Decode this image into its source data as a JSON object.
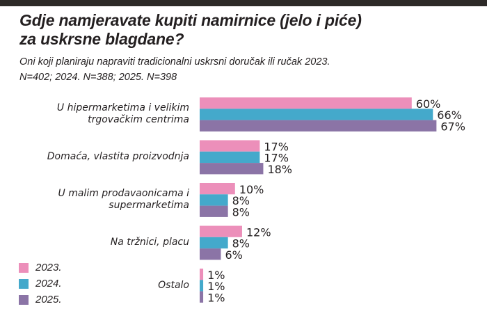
{
  "chart_data": {
    "type": "bar",
    "orientation": "horizontal",
    "title": "Gdje namjeravate kupiti namirnice (jelo i piće) za uskrsne blagdane?",
    "title_lines": [
      "Gdje namjeravate kupiti namirnice (jelo i piće)",
      "za uskrsne blagdane?"
    ],
    "subtitle_lines": [
      "Oni koji planiraju napraviti tradicionalni uskrsni doručak ili ručak 2023.",
      "N=402; 2024. N=388; 2025. N=398"
    ],
    "categories": [
      "U hipermarketima i velikim trgovačkim centrima",
      "Domaća, vlastita proizvodnja",
      "U malim prodavaonicama i supermarketima",
      "Na tržnici, placu",
      "Ostalo"
    ],
    "category_lines": [
      [
        "U hipermarketima i velikim",
        "trgovačkim centrima"
      ],
      [
        "Domaća, vlastita proizvodnja"
      ],
      [
        "U malim prodavaonicama i",
        "supermarketima"
      ],
      [
        "Na tržnici, placu"
      ],
      [
        "Ostalo"
      ]
    ],
    "series": [
      {
        "name": "2023.",
        "color": "#ec8fba",
        "values": [
          60,
          17,
          10,
          12,
          1
        ]
      },
      {
        "name": "2024.",
        "color": "#44a9cb",
        "values": [
          66,
          17,
          8,
          8,
          1
        ]
      },
      {
        "name": "2025.",
        "color": "#8b74a6",
        "values": [
          67,
          18,
          8,
          6,
          1
        ]
      }
    ],
    "value_suffix": "%",
    "xlabel": "",
    "ylabel": "",
    "xlim": [
      0,
      70
    ],
    "grid": false,
    "legend_position": "bottom-left"
  }
}
